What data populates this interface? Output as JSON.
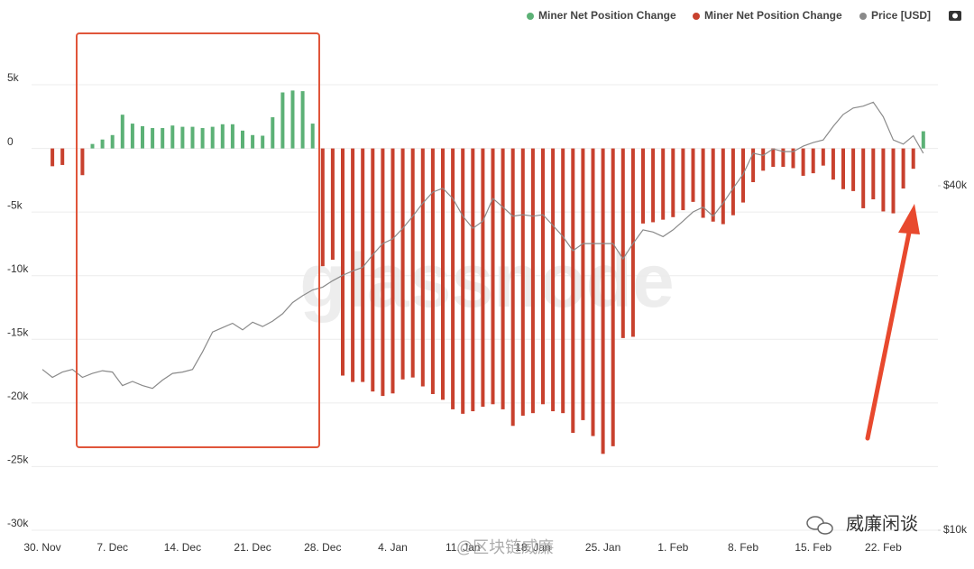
{
  "chart_data": {
    "type": "bar",
    "annotations": [
      "glassnode",
      "@区块链威廉",
      "威廉闲谈"
    ],
    "categories": [
      "30. Nov",
      null,
      null,
      null,
      null,
      null,
      null,
      "7. Dec",
      null,
      null,
      null,
      null,
      null,
      null,
      "14. Dec",
      null,
      null,
      null,
      null,
      null,
      null,
      "21. Dec",
      null,
      null,
      null,
      null,
      null,
      null,
      "28. Dec",
      null,
      null,
      null,
      null,
      null,
      null,
      "4. Jan",
      null,
      null,
      null,
      null,
      null,
      null,
      "11. Jan",
      null,
      null,
      null,
      null,
      null,
      null,
      "18. Jan",
      null,
      null,
      null,
      null,
      null,
      null,
      "25. Jan",
      null,
      null,
      null,
      null,
      null,
      null,
      "1. Feb",
      null,
      null,
      null,
      null,
      null,
      null,
      "8. Feb",
      null,
      null,
      null,
      null,
      null,
      null,
      "15. Feb",
      null,
      null,
      null,
      null,
      null,
      null,
      "22. Feb",
      null,
      null,
      null,
      null
    ],
    "series": [
      {
        "name": "Miner Net Position Change",
        "type": "bar",
        "color": "#5cb176",
        "values": [
          null,
          null,
          null,
          null,
          null,
          350,
          700,
          1050,
          2650,
          1950,
          1750,
          1600,
          1600,
          1800,
          1700,
          1700,
          1600,
          1700,
          1900,
          1900,
          1400,
          1050,
          1000,
          2450,
          4400,
          4550,
          4500,
          1950,
          null,
          null,
          null,
          null,
          null,
          null,
          null,
          null,
          null,
          null,
          null,
          null,
          null,
          null,
          null,
          null,
          null,
          null,
          null,
          null,
          null,
          null,
          null,
          null,
          null,
          null,
          null,
          null,
          null,
          null,
          null,
          null,
          null,
          null,
          null,
          null,
          null,
          null,
          null,
          null,
          null,
          null,
          null,
          null,
          null,
          null,
          null,
          null,
          null,
          null,
          null,
          null,
          null,
          null,
          null,
          null,
          null,
          null,
          null,
          null,
          1350
        ]
      },
      {
        "name": "Miner Net Position Change",
        "type": "bar",
        "color": "#c8412e",
        "values": [
          null,
          -1400,
          -1300,
          null,
          -2100,
          null,
          null,
          null,
          null,
          null,
          null,
          null,
          null,
          null,
          null,
          null,
          null,
          null,
          null,
          null,
          null,
          null,
          null,
          null,
          null,
          null,
          null,
          null,
          -9250,
          -8750,
          -17850,
          -18350,
          -18350,
          -19100,
          -19450,
          -19250,
          -18150,
          -18000,
          -18700,
          -19300,
          -19750,
          -20500,
          -20850,
          -20650,
          -20300,
          -20100,
          -20500,
          -21800,
          -21000,
          -20800,
          -20100,
          -20650,
          -20800,
          -22350,
          -21350,
          -22600,
          -24000,
          -23400,
          -14900,
          -14800,
          -5900,
          -5800,
          -5600,
          -5400,
          -4850,
          -4200,
          -5450,
          -5750,
          -5950,
          -5250,
          -4250,
          -2650,
          -1750,
          -1450,
          -1450,
          -1550,
          -2150,
          -1950,
          -1350,
          -2450,
          -3200,
          -3350,
          -4700,
          -4000,
          -4950,
          -5100,
          -3150,
          -1600,
          null
        ]
      },
      {
        "name": "Price [USD]",
        "type": "line",
        "axis": "y2",
        "color": "#8a8a8a",
        "values": [
          19100,
          18500,
          18900,
          19100,
          18500,
          18800,
          19000,
          18900,
          17900,
          18200,
          17900,
          17700,
          18300,
          18800,
          18900,
          19100,
          20500,
          22200,
          22600,
          23000,
          22400,
          23100,
          22700,
          23200,
          23900,
          25000,
          25700,
          26300,
          26600,
          27300,
          27900,
          28400,
          28800,
          30300,
          31700,
          32300,
          33700,
          35400,
          37300,
          39000,
          39600,
          38000,
          35400,
          33700,
          34700,
          38000,
          36700,
          35400,
          35600,
          35400,
          35600,
          34100,
          32600,
          30800,
          31700,
          31700,
          31700,
          31700,
          29800,
          31700,
          33500,
          33200,
          32600,
          33500,
          34700,
          36000,
          36700,
          35400,
          37300,
          39600,
          41900,
          45600,
          45200,
          46400,
          45900,
          45900,
          46900,
          47600,
          48100,
          50800,
          53300,
          54700,
          55100,
          56000,
          52800,
          48100,
          47300,
          48900,
          45600
        ]
      }
    ],
    "ylim": [
      -30000,
      10600
    ],
    "yticks": [
      {
        "value": 5000,
        "label": "5k"
      },
      0,
      {
        "value": -5000,
        "label": "-5k"
      },
      {
        "value": -10000,
        "label": "-10k"
      },
      {
        "value": -15000,
        "label": "-15k"
      },
      {
        "value": -20000,
        "label": "-20k"
      },
      {
        "value": -25000,
        "label": "-25k"
      },
      {
        "value": -30000,
        "label": "-30k"
      }
    ],
    "y2lim": [
      10000,
      80000
    ],
    "y2ticks": [
      {
        "value": 40000,
        "label": "$40k"
      },
      {
        "value": 10000,
        "label": "$10k"
      }
    ],
    "y2log": true,
    "grid": true,
    "legend": "top-right"
  }
}
